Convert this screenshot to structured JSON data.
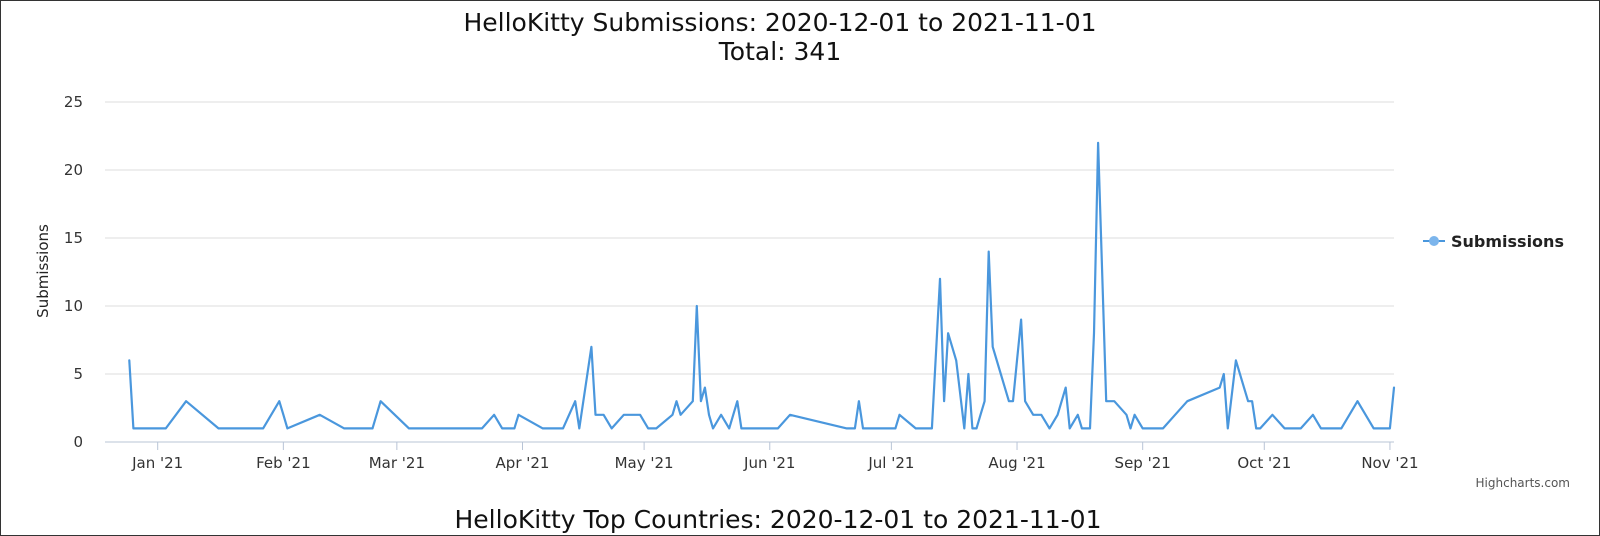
{
  "chart_title": "HelloKitty Submissions: 2020-12-01 to 2021-11-01",
  "chart_subtitle": "Total: 341",
  "second_chart_title": "HelloKitty Top Countries: 2020-12-01 to 2021-11-01",
  "credits": "Highcharts.com",
  "legend": {
    "label": "Submissions",
    "position": "right"
  },
  "colors": {
    "series": "#4a97dd",
    "grid": "#dcdcdc",
    "axis": "#b8c4d6"
  },
  "chart_data": {
    "type": "line",
    "title": "HelloKitty Submissions: 2020-12-01 to 2021-11-01",
    "subtitle": "Total: 341",
    "xlabel": "",
    "ylabel": "Submissions",
    "ylim": [
      0,
      25
    ],
    "xlim": [
      "2020-12-19",
      "2021-11-02"
    ],
    "y_ticks": [
      "0",
      "5",
      "10",
      "15",
      "20",
      "25"
    ],
    "x_ticks": [
      {
        "label": "Jan '21",
        "date": "2021-01-01"
      },
      {
        "label": "Feb '21",
        "date": "2021-02-01"
      },
      {
        "label": "Mar '21",
        "date": "2021-03-01"
      },
      {
        "label": "Apr '21",
        "date": "2021-04-01"
      },
      {
        "label": "May '21",
        "date": "2021-05-01"
      },
      {
        "label": "Jun '21",
        "date": "2021-06-01"
      },
      {
        "label": "Jul '21",
        "date": "2021-07-01"
      },
      {
        "label": "Aug '21",
        "date": "2021-08-01"
      },
      {
        "label": "Sep '21",
        "date": "2021-09-01"
      },
      {
        "label": "Oct '21",
        "date": "2021-10-01"
      },
      {
        "label": "Nov '21",
        "date": "2021-11-01"
      }
    ],
    "grid": true,
    "series": [
      {
        "name": "Submissions",
        "color": "#4a97dd",
        "points": [
          [
            "2020-12-25",
            6
          ],
          [
            "2020-12-26",
            1
          ],
          [
            "2021-01-03",
            1
          ],
          [
            "2021-01-08",
            3
          ],
          [
            "2021-01-16",
            1
          ],
          [
            "2021-01-27",
            1
          ],
          [
            "2021-01-31",
            3
          ],
          [
            "2021-02-01",
            2
          ],
          [
            "2021-02-02",
            1
          ],
          [
            "2021-02-10",
            2
          ],
          [
            "2021-02-16",
            1
          ],
          [
            "2021-02-23",
            1
          ],
          [
            "2021-02-25",
            3
          ],
          [
            "2021-03-04",
            1
          ],
          [
            "2021-03-22",
            1
          ],
          [
            "2021-03-25",
            2
          ],
          [
            "2021-03-27",
            1
          ],
          [
            "2021-03-30",
            1
          ],
          [
            "2021-03-31",
            2
          ],
          [
            "2021-04-06",
            1
          ],
          [
            "2021-04-11",
            1
          ],
          [
            "2021-04-14",
            3
          ],
          [
            "2021-04-15",
            1
          ],
          [
            "2021-04-18",
            7
          ],
          [
            "2021-04-19",
            2
          ],
          [
            "2021-04-21",
            2
          ],
          [
            "2021-04-23",
            1
          ],
          [
            "2021-04-26",
            2
          ],
          [
            "2021-04-30",
            2
          ],
          [
            "2021-05-02",
            1
          ],
          [
            "2021-05-04",
            1
          ],
          [
            "2021-05-08",
            2
          ],
          [
            "2021-05-09",
            3
          ],
          [
            "2021-05-10",
            2
          ],
          [
            "2021-05-13",
            3
          ],
          [
            "2021-05-14",
            10
          ],
          [
            "2021-05-15",
            3
          ],
          [
            "2021-05-16",
            4
          ],
          [
            "2021-05-17",
            2
          ],
          [
            "2021-05-18",
            1
          ],
          [
            "2021-05-20",
            2
          ],
          [
            "2021-05-22",
            1
          ],
          [
            "2021-05-24",
            3
          ],
          [
            "2021-05-25",
            1
          ],
          [
            "2021-06-01",
            1
          ],
          [
            "2021-06-03",
            1
          ],
          [
            "2021-06-06",
            2
          ],
          [
            "2021-06-20",
            1
          ],
          [
            "2021-06-22",
            1
          ],
          [
            "2021-06-23",
            3
          ],
          [
            "2021-06-24",
            1
          ],
          [
            "2021-06-25",
            1
          ],
          [
            "2021-06-28",
            1
          ],
          [
            "2021-07-02",
            1
          ],
          [
            "2021-07-03",
            2
          ],
          [
            "2021-07-07",
            1
          ],
          [
            "2021-07-11",
            1
          ],
          [
            "2021-07-13",
            12
          ],
          [
            "2021-07-14",
            3
          ],
          [
            "2021-07-15",
            8
          ],
          [
            "2021-07-17",
            6
          ],
          [
            "2021-07-19",
            1
          ],
          [
            "2021-07-20",
            5
          ],
          [
            "2021-07-21",
            1
          ],
          [
            "2021-07-22",
            1
          ],
          [
            "2021-07-23",
            2
          ],
          [
            "2021-07-24",
            3
          ],
          [
            "2021-07-25",
            14
          ],
          [
            "2021-07-26",
            7
          ],
          [
            "2021-07-28",
            5
          ],
          [
            "2021-07-30",
            3
          ],
          [
            "2021-07-31",
            3
          ],
          [
            "2021-08-01",
            6
          ],
          [
            "2021-08-02",
            9
          ],
          [
            "2021-08-03",
            3
          ],
          [
            "2021-08-05",
            2
          ],
          [
            "2021-08-07",
            2
          ],
          [
            "2021-08-09",
            1
          ],
          [
            "2021-08-11",
            2
          ],
          [
            "2021-08-13",
            4
          ],
          [
            "2021-08-14",
            1
          ],
          [
            "2021-08-16",
            2
          ],
          [
            "2021-08-17",
            1
          ],
          [
            "2021-08-19",
            1
          ],
          [
            "2021-08-20",
            8
          ],
          [
            "2021-08-21",
            22
          ],
          [
            "2021-08-23",
            3
          ],
          [
            "2021-08-25",
            3
          ],
          [
            "2021-08-28",
            2
          ],
          [
            "2021-08-29",
            1
          ],
          [
            "2021-08-30",
            2
          ],
          [
            "2021-09-01",
            1
          ],
          [
            "2021-09-06",
            1
          ],
          [
            "2021-09-09",
            2
          ],
          [
            "2021-09-12",
            3
          ],
          [
            "2021-09-20",
            4
          ],
          [
            "2021-09-21",
            5
          ],
          [
            "2021-09-22",
            1
          ],
          [
            "2021-09-24",
            6
          ],
          [
            "2021-09-26",
            4
          ],
          [
            "2021-09-27",
            3
          ],
          [
            "2021-09-28",
            3
          ],
          [
            "2021-09-29",
            1
          ],
          [
            "2021-09-30",
            1
          ],
          [
            "2021-10-03",
            2
          ],
          [
            "2021-10-06",
            1
          ],
          [
            "2021-10-10",
            1
          ],
          [
            "2021-10-13",
            2
          ],
          [
            "2021-10-15",
            1
          ],
          [
            "2021-10-20",
            1
          ],
          [
            "2021-10-24",
            3
          ],
          [
            "2021-10-28",
            1
          ],
          [
            "2021-10-31",
            1
          ],
          [
            "2021-11-01",
            1
          ],
          [
            "2021-11-02",
            4
          ]
        ]
      }
    ]
  }
}
